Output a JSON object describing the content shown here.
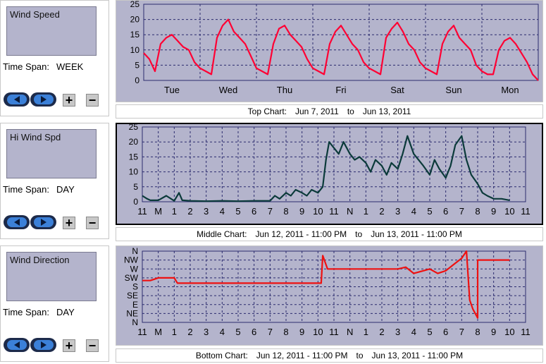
{
  "panels": [
    {
      "title": "Wind Speed",
      "timespan_label": "Time Span:",
      "timespan_value": "WEEK",
      "caption_prefix": "Top Chart:",
      "caption_from": "Jun 7, 2011",
      "caption_to_word": "to",
      "caption_to": "Jun 13, 2011"
    },
    {
      "title": "Hi Wind Spd",
      "timespan_label": "Time Span:",
      "timespan_value": "DAY",
      "caption_prefix": "Middle Chart:",
      "caption_from": "Jun 12, 2011 - 11:00 PM",
      "caption_to_word": "to",
      "caption_to": "Jun 13, 2011 - 11:00 PM"
    },
    {
      "title": "Wind Direction",
      "timespan_label": "Time Span:",
      "timespan_value": "DAY",
      "caption_prefix": "Bottom Chart:",
      "caption_from": "Jun 12, 2011 - 11:00 PM",
      "caption_to_word": "to",
      "caption_to": "Jun 13, 2011 - 11:00 PM"
    }
  ],
  "controls": {
    "plus": "+",
    "minus": "−"
  },
  "colors": {
    "plot_bg": "#b4b4cc",
    "grid": "#2b2b6e",
    "speed_line": "#ff0033",
    "hi_line": "#0b3a3a",
    "dir_line": "#ee1111",
    "selected_border": "#000000"
  },
  "chart_data": [
    {
      "type": "line",
      "series": [
        {
          "values": [
            [
              0.0,
              9
            ],
            [
              0.2,
              7
            ],
            [
              0.4,
              3
            ],
            [
              0.6,
              12
            ],
            [
              0.8,
              14
            ],
            [
              1.0,
              15
            ],
            [
              1.2,
              13
            ],
            [
              1.4,
              11
            ],
            [
              1.6,
              10
            ],
            [
              1.8,
              6
            ],
            [
              2.0,
              4
            ],
            [
              2.2,
              3
            ],
            [
              2.4,
              2
            ],
            [
              2.6,
              14
            ],
            [
              2.8,
              18
            ],
            [
              3.0,
              20
            ],
            [
              3.2,
              16
            ],
            [
              3.4,
              14
            ],
            [
              3.6,
              12
            ],
            [
              3.8,
              8
            ],
            [
              4.0,
              4
            ],
            [
              4.2,
              3
            ],
            [
              4.4,
              2
            ],
            [
              4.6,
              12
            ],
            [
              4.8,
              17
            ],
            [
              5.0,
              18
            ],
            [
              5.2,
              15
            ],
            [
              5.4,
              13
            ],
            [
              5.6,
              11
            ],
            [
              5.8,
              7
            ],
            [
              6.0,
              4
            ],
            [
              6.2,
              3
            ],
            [
              6.4,
              2
            ],
            [
              6.6,
              12
            ],
            [
              6.8,
              16
            ],
            [
              7.0,
              18
            ],
            [
              7.2,
              15
            ],
            [
              7.4,
              12
            ],
            [
              7.6,
              10
            ],
            [
              7.8,
              6
            ],
            [
              8.0,
              4
            ],
            [
              8.2,
              3
            ],
            [
              8.4,
              2
            ],
            [
              8.6,
              14
            ],
            [
              8.8,
              17
            ],
            [
              9.0,
              19
            ],
            [
              9.2,
              16
            ],
            [
              9.4,
              12
            ],
            [
              9.6,
              10
            ],
            [
              9.8,
              6
            ],
            [
              10.0,
              4
            ],
            [
              10.2,
              3
            ],
            [
              10.4,
              2
            ],
            [
              10.6,
              12
            ],
            [
              10.8,
              16
            ],
            [
              11.0,
              18
            ],
            [
              11.2,
              14
            ],
            [
              11.4,
              12
            ],
            [
              11.6,
              10
            ],
            [
              11.8,
              5
            ],
            [
              12.0,
              3
            ],
            [
              12.2,
              2
            ],
            [
              12.4,
              2
            ],
            [
              12.6,
              10
            ],
            [
              12.8,
              13
            ],
            [
              13.0,
              14
            ],
            [
              13.2,
              12
            ],
            [
              13.4,
              9
            ],
            [
              13.6,
              6
            ],
            [
              13.8,
              2
            ],
            [
              14.0,
              0
            ]
          ]
        }
      ],
      "x_ticks": [
        "Tue",
        "Wed",
        "Thu",
        "Fri",
        "Sat",
        "Sun",
        "Mon"
      ],
      "y_ticks": [
        "0",
        "5",
        "10",
        "15",
        "20",
        "25"
      ],
      "ylim": [
        0,
        25
      ]
    },
    {
      "type": "line",
      "series": [
        {
          "values": [
            [
              0,
              2
            ],
            [
              0.3,
              1
            ],
            [
              0.5,
              0.5
            ],
            [
              1,
              0.5
            ],
            [
              1.5,
              2
            ],
            [
              2,
              0.3
            ],
            [
              2.3,
              3
            ],
            [
              2.5,
              0.5
            ],
            [
              3,
              0.3
            ],
            [
              4,
              0.2
            ],
            [
              5,
              0.3
            ],
            [
              6,
              0.2
            ],
            [
              7,
              0.3
            ],
            [
              8,
              0.3
            ],
            [
              8.3,
              2
            ],
            [
              8.6,
              1
            ],
            [
              9,
              3
            ],
            [
              9.3,
              2
            ],
            [
              9.6,
              4
            ],
            [
              10,
              3
            ],
            [
              10.3,
              2
            ],
            [
              10.6,
              4
            ],
            [
              11,
              3
            ],
            [
              11.3,
              5
            ],
            [
              11.5,
              14
            ],
            [
              11.7,
              20
            ],
            [
              12,
              18
            ],
            [
              12.3,
              16
            ],
            [
              12.6,
              20
            ],
            [
              13,
              16
            ],
            [
              13.3,
              14
            ],
            [
              13.6,
              15
            ],
            [
              14,
              13
            ],
            [
              14.3,
              10
            ],
            [
              14.6,
              14
            ],
            [
              15,
              12
            ],
            [
              15.3,
              9
            ],
            [
              15.6,
              13
            ],
            [
              16,
              11
            ],
            [
              16.3,
              16
            ],
            [
              16.6,
              22
            ],
            [
              17,
              16
            ],
            [
              17.3,
              14
            ],
            [
              17.6,
              12
            ],
            [
              18,
              9
            ],
            [
              18.3,
              14
            ],
            [
              18.6,
              11
            ],
            [
              19,
              8
            ],
            [
              19.3,
              12
            ],
            [
              19.6,
              19
            ],
            [
              20,
              22
            ],
            [
              20.3,
              14
            ],
            [
              20.6,
              9
            ],
            [
              21,
              6
            ],
            [
              21.3,
              3
            ],
            [
              21.6,
              2
            ],
            [
              22,
              1
            ],
            [
              22.5,
              1
            ],
            [
              23,
              0.5
            ]
          ]
        }
      ],
      "x_ticks": [
        "11",
        "M",
        "1",
        "2",
        "3",
        "4",
        "5",
        "6",
        "7",
        "8",
        "9",
        "10",
        "11",
        "N",
        "1",
        "2",
        "3",
        "4",
        "5",
        "6",
        "7",
        "8",
        "9",
        "10",
        "11"
      ],
      "y_ticks": [
        "0",
        "5",
        "10",
        "15",
        "20",
        "25"
      ],
      "ylim": [
        0,
        25
      ]
    },
    {
      "type": "line",
      "series": [
        {
          "values": [
            [
              0,
              4.7
            ],
            [
              0.5,
              4.7
            ],
            [
              1,
              5
            ],
            [
              1.4,
              5
            ],
            [
              2,
              5
            ],
            [
              2.2,
              4.4
            ],
            [
              2.6,
              4.4
            ],
            [
              5,
              4.4
            ],
            [
              7,
              4.4
            ],
            [
              8.2,
              4.4
            ],
            [
              10,
              4.4
            ],
            [
              11.2,
              4.4
            ],
            [
              11.3,
              7.5
            ],
            [
              11.6,
              6
            ],
            [
              12,
              6
            ],
            [
              13,
              6
            ],
            [
              14,
              6
            ],
            [
              15,
              6
            ],
            [
              16,
              6
            ],
            [
              16.5,
              6.2
            ],
            [
              17,
              5.5
            ],
            [
              18,
              6
            ],
            [
              18.5,
              5.5
            ],
            [
              19,
              5.8
            ],
            [
              19.5,
              6.5
            ],
            [
              20,
              7.2
            ],
            [
              20.3,
              8
            ],
            [
              20.5,
              2.5
            ],
            [
              20.7,
              1.5
            ],
            [
              21,
              0.5
            ],
            [
              21,
              7
            ],
            [
              21.5,
              7
            ],
            [
              22,
              7
            ],
            [
              23,
              7
            ]
          ]
        }
      ],
      "x_ticks": [
        "11",
        "M",
        "1",
        "2",
        "3",
        "4",
        "5",
        "6",
        "7",
        "8",
        "9",
        "10",
        "11",
        "N",
        "1",
        "2",
        "3",
        "4",
        "5",
        "6",
        "7",
        "8",
        "9",
        "10",
        "11"
      ],
      "y_ticks": [
        "N",
        "NE",
        "E",
        "SE",
        "S",
        "SW",
        "W",
        "NW",
        "N"
      ],
      "ylim": [
        0,
        8
      ]
    }
  ]
}
